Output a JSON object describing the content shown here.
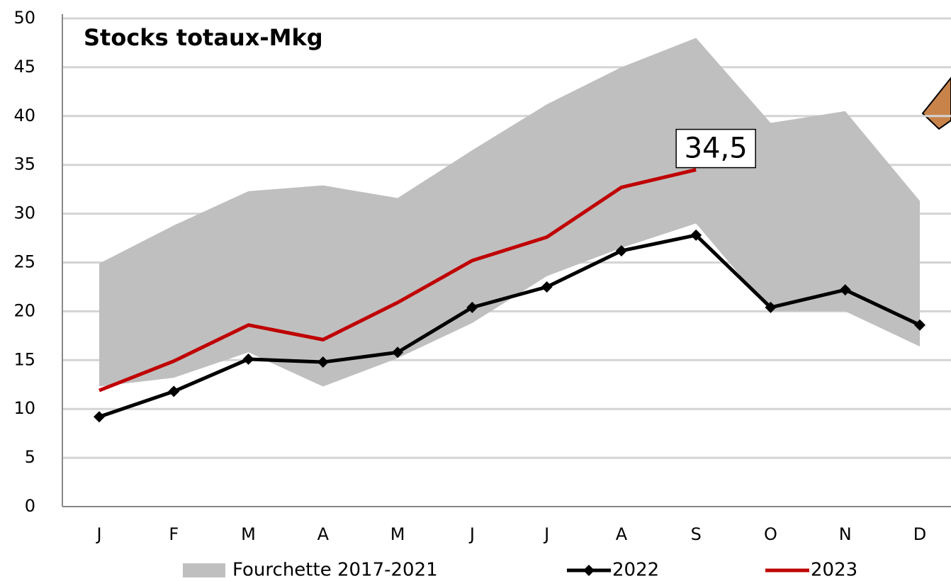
{
  "chart_data": {
    "type": "line",
    "title": "Stocks totaux-Mkg",
    "categories": [
      "J",
      "F",
      "M",
      "A",
      "M",
      "J",
      "J",
      "A",
      "S",
      "O",
      "N",
      "D"
    ],
    "ylim": [
      0,
      50
    ],
    "yticks": [
      0,
      5,
      10,
      15,
      20,
      25,
      30,
      35,
      40,
      45,
      50
    ],
    "grid": true,
    "series": [
      {
        "name": "Fourchette 2017-2021",
        "type": "range",
        "color": "#bfbfbf",
        "upper": [
          24.9,
          28.8,
          32.3,
          32.9,
          31.6,
          36.5,
          41.2,
          45,
          48,
          39.3,
          40.5,
          31.3
        ],
        "lower": [
          12.3,
          13.2,
          15.8,
          12.3,
          15.2,
          18.8,
          23.6,
          26.5,
          29,
          20,
          20,
          16.4
        ]
      },
      {
        "name": "2022",
        "color": "#000000",
        "marker": "diamond",
        "values": [
          9.2,
          11.8,
          15.1,
          14.8,
          15.8,
          20.4,
          22.5,
          26.2,
          27.8,
          20.4,
          22.2,
          18.6
        ]
      },
      {
        "name": "2023",
        "color": "#c00000",
        "values": [
          11.9,
          14.9,
          18.6,
          17.1,
          20.9,
          25.2,
          27.6,
          32.7,
          34.5,
          null,
          null,
          null
        ],
        "value_labels": [
          null,
          null,
          null,
          null,
          null,
          null,
          null,
          null,
          "34,5",
          null,
          null,
          null
        ]
      }
    ]
  }
}
